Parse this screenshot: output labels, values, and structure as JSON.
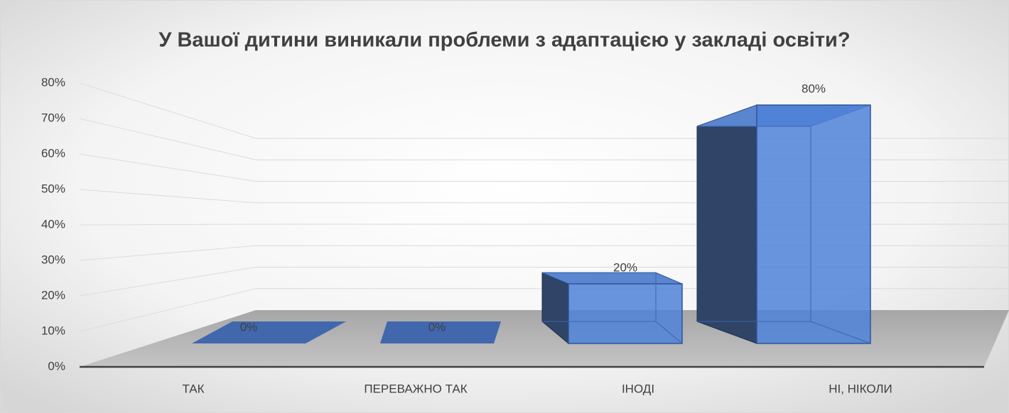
{
  "chart_data": {
    "type": "bar3d",
    "title": "У Вашої дитини виникали проблеми з адаптацією у закладі освіти?",
    "categories": [
      "ТАК",
      "ПЕРЕВАЖНО ТАК",
      "ІНОДІ",
      "НІ, НІКОЛИ"
    ],
    "values": [
      0,
      0,
      20,
      80
    ],
    "value_labels": [
      "0%",
      "0%",
      "20%",
      "80%"
    ],
    "color": "#4f81d8",
    "ylim": [
      0,
      80
    ],
    "yticks": [
      {
        "value": 0,
        "label": "0%"
      },
      {
        "value": 10,
        "label": "10%"
      },
      {
        "value": 20,
        "label": "20%"
      },
      {
        "value": 30,
        "label": "30%"
      },
      {
        "value": 40,
        "label": "40%"
      },
      {
        "value": 50,
        "label": "50%"
      },
      {
        "value": 60,
        "label": "60%"
      },
      {
        "value": 70,
        "label": "70%"
      },
      {
        "value": 80,
        "label": "80%"
      }
    ],
    "grid": true
  }
}
